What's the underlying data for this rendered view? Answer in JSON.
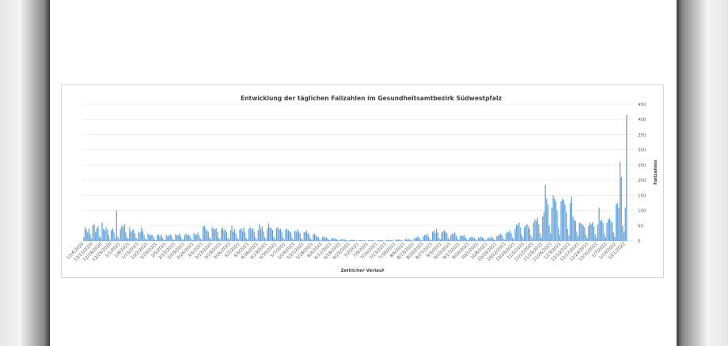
{
  "chart_data": {
    "type": "bar",
    "title": "Entwicklung der täglichen Fallzahlen im Gesundheitsamtbezirk Südwestpfalz",
    "xlabel": "Zeitlicher Verlauf",
    "ylabel": "Fallzahlen",
    "ylim": [
      0,
      450
    ],
    "yticks": [
      0,
      50,
      100,
      150,
      200,
      250,
      300,
      350,
      400,
      450
    ],
    "y_axis_side": "right",
    "grid": true,
    "legend": "none",
    "bar_color": "#5b9bd5",
    "x_tick_labels": [
      "12/4/2020",
      "12/11/2020",
      "12/18/2020",
      "12/25/2020",
      "1/1/2021",
      "1/8/2021",
      "1/15/2021",
      "1/22/2021",
      "1/29/2021",
      "2/5/2021",
      "2/12/2021",
      "2/19/2021",
      "2/26/2021",
      "3/5/2021",
      "3/12/2021",
      "3/19/2021",
      "3/26/2021",
      "4/2/2021",
      "4/9/2021",
      "4/16/2021",
      "4/23/2021",
      "4/30/2021",
      "5/7/2021",
      "5/14/2021",
      "5/21/2021",
      "5/28/2021",
      "6/4/2021",
      "6/11/2021",
      "6/18/2021",
      "6/25/2021",
      "7/2/2021",
      "7/9/2021",
      "7/16/2021",
      "7/23/2021",
      "7/30/2021",
      "8/6/2021",
      "8/13/2021",
      "8/20/2021",
      "8/27/2021",
      "9/3/2021",
      "9/10/2021",
      "9/17/2021",
      "9/24/2021",
      "10/1/2021",
      "10/8/2021",
      "10/15/2021",
      "10/22/2021",
      "10/29/2021",
      "11/5/2021",
      "11/12/2021",
      "11/19/2021",
      "11/26/2021",
      "12/3/2021",
      "12/10/2021",
      "12/17/2021",
      "12/24/2021",
      "12/31/2021",
      "1/7/2022",
      "1/14/2022",
      "1/21/2022"
    ],
    "weekly_values": [
      [
        12,
        45,
        38,
        28,
        40,
        22,
        8
      ],
      [
        50,
        55,
        30,
        42,
        48,
        15,
        10
      ],
      [
        60,
        40,
        35,
        45,
        38,
        20,
        5
      ],
      [
        35,
        42,
        30,
        8,
        100,
        15,
        6
      ],
      [
        40,
        50,
        45,
        55,
        30,
        12,
        8
      ],
      [
        45,
        30,
        35,
        38,
        25,
        10,
        5
      ],
      [
        30,
        28,
        45,
        32,
        20,
        8,
        4
      ],
      [
        25,
        20,
        18,
        22,
        15,
        6,
        3
      ],
      [
        18,
        22,
        15,
        20,
        12,
        5,
        3
      ],
      [
        20,
        15,
        18,
        22,
        16,
        6,
        3
      ],
      [
        22,
        18,
        20,
        25,
        15,
        6,
        4
      ],
      [
        20,
        25,
        18,
        22,
        16,
        7,
        3
      ],
      [
        25,
        22,
        20,
        28,
        18,
        8,
        4
      ],
      [
        48,
        50,
        40,
        35,
        30,
        12,
        6
      ],
      [
        45,
        40,
        38,
        42,
        30,
        10,
        5
      ],
      [
        40,
        45,
        35,
        38,
        28,
        10,
        5
      ],
      [
        35,
        50,
        30,
        40,
        25,
        12,
        5
      ],
      [
        38,
        42,
        32,
        45,
        28,
        10,
        4
      ],
      [
        40,
        45,
        38,
        42,
        30,
        12,
        5
      ],
      [
        35,
        55,
        40,
        48,
        32,
        12,
        6
      ],
      [
        40,
        58,
        45,
        42,
        35,
        14,
        6
      ],
      [
        42,
        45,
        38,
        40,
        30,
        12,
        5
      ],
      [
        38,
        40,
        35,
        32,
        28,
        10,
        4
      ],
      [
        35,
        30,
        38,
        32,
        25,
        8,
        4
      ],
      [
        30,
        28,
        35,
        25,
        20,
        8,
        3
      ],
      [
        20,
        25,
        18,
        15,
        12,
        5,
        2
      ],
      [
        12,
        15,
        10,
        12,
        8,
        4,
        2
      ],
      [
        8,
        10,
        6,
        8,
        5,
        3,
        1
      ],
      [
        5,
        6,
        4,
        5,
        3,
        2,
        1
      ],
      [
        3,
        4,
        3,
        4,
        2,
        1,
        1
      ],
      [
        3,
        3,
        2,
        3,
        2,
        1,
        0
      ],
      [
        2,
        3,
        2,
        3,
        2,
        1,
        0
      ],
      [
        2,
        3,
        3,
        2,
        2,
        1,
        0
      ],
      [
        3,
        3,
        4,
        3,
        2,
        1,
        0
      ],
      [
        4,
        3,
        5,
        4,
        3,
        1,
        0
      ],
      [
        5,
        6,
        4,
        6,
        4,
        2,
        1
      ],
      [
        8,
        10,
        12,
        15,
        10,
        4,
        2
      ],
      [
        15,
        20,
        18,
        25,
        15,
        6,
        3
      ],
      [
        30,
        35,
        25,
        40,
        28,
        10,
        5
      ],
      [
        28,
        32,
        35,
        30,
        25,
        10,
        4
      ],
      [
        20,
        25,
        22,
        28,
        18,
        8,
        3
      ],
      [
        15,
        18,
        16,
        20,
        12,
        6,
        3
      ],
      [
        10,
        12,
        14,
        12,
        10,
        5,
        2
      ],
      [
        12,
        10,
        14,
        12,
        8,
        4,
        2
      ],
      [
        10,
        12,
        8,
        15,
        10,
        5,
        2
      ],
      [
        15,
        18,
        20,
        25,
        18,
        8,
        4
      ],
      [
        25,
        30,
        28,
        35,
        25,
        12,
        6
      ],
      [
        40,
        55,
        50,
        60,
        45,
        20,
        10
      ],
      [
        45,
        50,
        55,
        48,
        40,
        18,
        8
      ],
      [
        60,
        70,
        65,
        75,
        55,
        25,
        12
      ],
      [
        80,
        95,
        185,
        140,
        120,
        50,
        25
      ],
      [
        110,
        150,
        140,
        130,
        100,
        45,
        20
      ],
      [
        130,
        140,
        135,
        120,
        95,
        40,
        18
      ],
      [
        125,
        145,
        80,
        70,
        65,
        30,
        15
      ],
      [
        60,
        58,
        55,
        50,
        45,
        20,
        10
      ],
      [
        50,
        60,
        55,
        62,
        48,
        22,
        10
      ],
      [
        55,
        110,
        65,
        70,
        60,
        25,
        12
      ],
      [
        60,
        70,
        75,
        65,
        60,
        28,
        14
      ],
      [
        120,
        125,
        110,
        260,
        210,
        50,
        30
      ],
      [
        110,
        415,
        0,
        0,
        0,
        0,
        0
      ]
    ]
  }
}
